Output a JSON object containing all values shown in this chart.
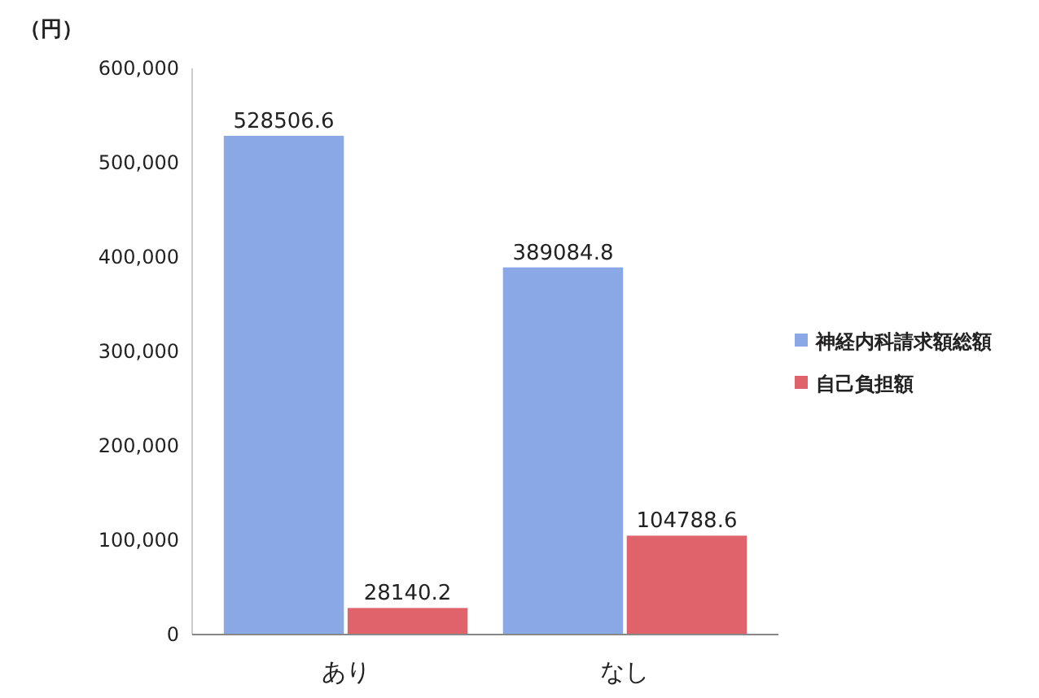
{
  "chart_data": {
    "type": "bar",
    "ylabel": "（円）",
    "categories": [
      "あり",
      "なし"
    ],
    "series": [
      {
        "name": "神経内科請求額総額",
        "color": "#8aa8e6",
        "values": [
          528506.6,
          389084.8
        ]
      },
      {
        "name": "自己負担額",
        "color": "#e0636c",
        "values": [
          28140.2,
          104788.6
        ]
      }
    ],
    "ylim": [
      0,
      600000
    ],
    "yticks": [
      {
        "value": 0,
        "label": "0"
      },
      {
        "value": 100000,
        "label": "100,000"
      },
      {
        "value": 200000,
        "label": "200,000"
      },
      {
        "value": 300000,
        "label": "300,000"
      },
      {
        "value": 400000,
        "label": "400,000"
      },
      {
        "value": 500000,
        "label": "500,000"
      },
      {
        "value": 600000,
        "label": "600,000"
      }
    ],
    "data_labels": true,
    "legend": "right",
    "grid": false
  }
}
